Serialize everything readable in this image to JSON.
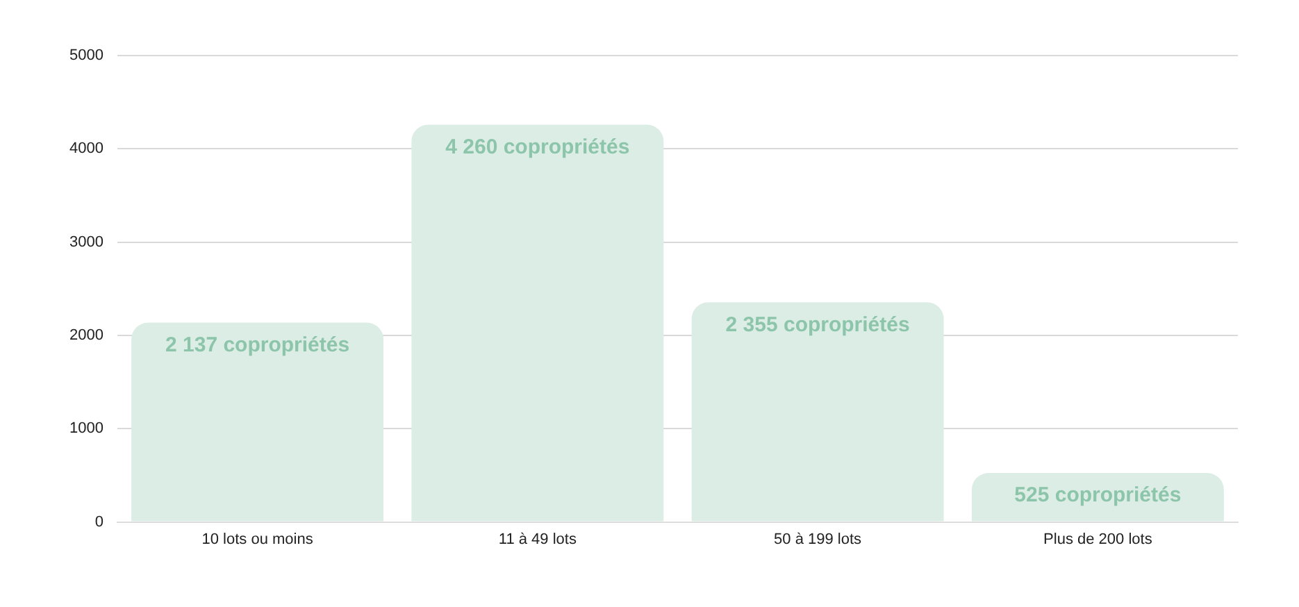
{
  "chart_data": {
    "type": "bar",
    "categories": [
      "10 lots ou moins",
      "11 à 49 lots",
      "50 à 199 lots",
      "Plus de 200 lots"
    ],
    "values": [
      2137,
      4260,
      2355,
      525
    ],
    "value_labels": [
      "2 137 copropriétés",
      "4 260 copropriétés",
      "2 355 copropriétés",
      "525 copropriétés"
    ],
    "color": "#dcede6",
    "ylim": [
      0,
      5000
    ],
    "yticks": [
      0,
      1000,
      2000,
      3000,
      4000,
      5000
    ],
    "grid": "y",
    "legend": false
  }
}
